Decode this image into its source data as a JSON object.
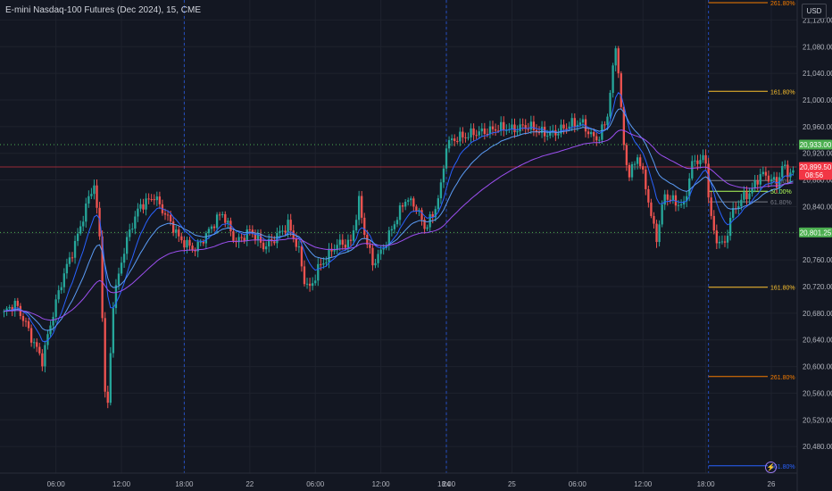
{
  "header": {
    "instrument": "E-mini Nasdaq-100 Futures (Dec 2024)",
    "interval": "15",
    "exchange": "CME",
    "currency": "USD"
  },
  "colors": {
    "background": "#131722",
    "grid": "#1e222d",
    "axis_text": "#b2b5be",
    "up_candle": "#26a69a",
    "down_candle": "#ef5350",
    "ma_fast": "#2962ff",
    "ma_mid": "#5b9cf6",
    "ma_slow": "#9c4ff0",
    "level_green": "#4caf50",
    "current_price": "#f23645"
  },
  "chart_data": {
    "type": "candlestick",
    "y_axis": {
      "ylim": [
        20440,
        21150
      ],
      "ticks": [
        20480,
        20520,
        20560,
        20600,
        20640,
        20680,
        20720,
        20760,
        20800,
        20840,
        20880,
        20920,
        20960,
        21000,
        21040,
        21080,
        21120
      ],
      "tick_labels": [
        "20,480.00",
        "20,520.00",
        "20,560.00",
        "20,600.00",
        "20,640.00",
        "20,680.00",
        "20,720.00",
        "20,760.00",
        "20,800.00",
        "20,840.00",
        "20,880.00",
        "20,920.00",
        "20,960.00",
        "21,000.00",
        "21,040.00",
        "21,080.00",
        "21,120.00"
      ]
    },
    "x_axis": {
      "bar_count": 290,
      "ticks": [
        {
          "label": "06:00",
          "bar": 19
        },
        {
          "label": "12:00",
          "bar": 43
        },
        {
          "label": "18:00",
          "bar": 66
        },
        {
          "label": "22",
          "bar": 90
        },
        {
          "label": "06:00",
          "bar": 114
        },
        {
          "label": "12:00",
          "bar": 138
        },
        {
          "label": "18:00",
          "bar": 162
        },
        {
          "label": "24",
          "bar": 162
        },
        {
          "label": "25",
          "bar": 186
        },
        {
          "label": "06:00",
          "bar": 210
        },
        {
          "label": "12:00",
          "bar": 234
        },
        {
          "label": "18:00",
          "bar": 257
        },
        {
          "label": "26",
          "bar": 281
        }
      ],
      "tick_display": [
        "06:00",
        "12:00",
        "18:00",
        "22",
        "06:00",
        "12:00",
        "18:00",
        "24",
        "25",
        "06:00",
        "12:00",
        "18:00",
        "26"
      ],
      "session_separators": [
        66,
        162,
        258
      ]
    },
    "price_path": [
      {
        "bar": 0,
        "price": 20680
      },
      {
        "bar": 4,
        "price": 20690
      },
      {
        "bar": 8,
        "price": 20665
      },
      {
        "bar": 12,
        "price": 20630
      },
      {
        "bar": 14,
        "price": 20610
      },
      {
        "bar": 17,
        "price": 20660
      },
      {
        "bar": 22,
        "price": 20740
      },
      {
        "bar": 27,
        "price": 20800
      },
      {
        "bar": 31,
        "price": 20850
      },
      {
        "bar": 33,
        "price": 20870
      },
      {
        "bar": 35,
        "price": 20790
      },
      {
        "bar": 36,
        "price": 20680
      },
      {
        "bar": 37,
        "price": 20560
      },
      {
        "bar": 38,
        "price": 20545
      },
      {
        "bar": 40,
        "price": 20700
      },
      {
        "bar": 43,
        "price": 20760
      },
      {
        "bar": 46,
        "price": 20800
      },
      {
        "bar": 50,
        "price": 20840
      },
      {
        "bar": 55,
        "price": 20860
      },
      {
        "bar": 60,
        "price": 20820
      },
      {
        "bar": 64,
        "price": 20790
      },
      {
        "bar": 70,
        "price": 20780
      },
      {
        "bar": 75,
        "price": 20800
      },
      {
        "bar": 80,
        "price": 20830
      },
      {
        "bar": 85,
        "price": 20790
      },
      {
        "bar": 90,
        "price": 20800
      },
      {
        "bar": 95,
        "price": 20780
      },
      {
        "bar": 100,
        "price": 20800
      },
      {
        "bar": 104,
        "price": 20810
      },
      {
        "bar": 108,
        "price": 20770
      },
      {
        "bar": 110,
        "price": 20730
      },
      {
        "bar": 112,
        "price": 20720
      },
      {
        "bar": 115,
        "price": 20750
      },
      {
        "bar": 118,
        "price": 20760
      },
      {
        "bar": 122,
        "price": 20780
      },
      {
        "bar": 127,
        "price": 20790
      },
      {
        "bar": 130,
        "price": 20850
      },
      {
        "bar": 132,
        "price": 20800
      },
      {
        "bar": 135,
        "price": 20750
      },
      {
        "bar": 138,
        "price": 20770
      },
      {
        "bar": 140,
        "price": 20790
      },
      {
        "bar": 143,
        "price": 20820
      },
      {
        "bar": 147,
        "price": 20850
      },
      {
        "bar": 151,
        "price": 20835
      },
      {
        "bar": 154,
        "price": 20810
      },
      {
        "bar": 157,
        "price": 20830
      },
      {
        "bar": 160,
        "price": 20870
      },
      {
        "bar": 162,
        "price": 20930
      },
      {
        "bar": 166,
        "price": 20940
      },
      {
        "bar": 172,
        "price": 20955
      },
      {
        "bar": 178,
        "price": 20950
      },
      {
        "bar": 184,
        "price": 20960
      },
      {
        "bar": 190,
        "price": 20960
      },
      {
        "bar": 196,
        "price": 20950
      },
      {
        "bar": 202,
        "price": 20955
      },
      {
        "bar": 208,
        "price": 20960
      },
      {
        "bar": 212,
        "price": 20965
      },
      {
        "bar": 215,
        "price": 20950
      },
      {
        "bar": 218,
        "price": 20945
      },
      {
        "bar": 221,
        "price": 20975
      },
      {
        "bar": 223,
        "price": 21040
      },
      {
        "bar": 224,
        "price": 21080
      },
      {
        "bar": 225,
        "price": 21040
      },
      {
        "bar": 227,
        "price": 20930
      },
      {
        "bar": 229,
        "price": 20890
      },
      {
        "bar": 232,
        "price": 20920
      },
      {
        "bar": 235,
        "price": 20870
      },
      {
        "bar": 237,
        "price": 20820
      },
      {
        "bar": 239,
        "price": 20790
      },
      {
        "bar": 242,
        "price": 20860
      },
      {
        "bar": 246,
        "price": 20850
      },
      {
        "bar": 249,
        "price": 20840
      },
      {
        "bar": 252,
        "price": 20900
      },
      {
        "bar": 255,
        "price": 20910
      },
      {
        "bar": 257,
        "price": 20910
      },
      {
        "bar": 258,
        "price": 20860
      },
      {
        "bar": 260,
        "price": 20800
      },
      {
        "bar": 262,
        "price": 20790
      },
      {
        "bar": 264,
        "price": 20780
      },
      {
        "bar": 266,
        "price": 20820
      },
      {
        "bar": 270,
        "price": 20850
      },
      {
        "bar": 274,
        "price": 20870
      },
      {
        "bar": 277,
        "price": 20890
      },
      {
        "bar": 280,
        "price": 20880
      },
      {
        "bar": 283,
        "price": 20870
      },
      {
        "bar": 285,
        "price": 20900
      },
      {
        "bar": 287,
        "price": 20895
      }
    ],
    "moving_averages": [
      {
        "color": "#2962ff",
        "period": 9
      },
      {
        "color": "#5b9cf6",
        "period": 20
      },
      {
        "color": "#9c4ff0",
        "period": 55
      }
    ],
    "horizontal_levels": [
      {
        "price": 20933.0,
        "label": "20,933.00",
        "color": "#4caf50",
        "style": "dotted",
        "full_width": true
      },
      {
        "price": 20801.25,
        "label": "20,801.25",
        "color": "#4caf50",
        "style": "dotted",
        "full_width": true
      },
      {
        "price": 20899.5,
        "label": "20,899.50",
        "color": "#f23645",
        "style": "solid",
        "full_width": true,
        "current": true,
        "countdown": "08:56"
      }
    ],
    "fibonacci_levels": [
      {
        "label": "261.80%",
        "price": 21147,
        "color": "#f57c00"
      },
      {
        "label": "161.80%",
        "price": 21013,
        "color": "#fbc02d"
      },
      {
        "label": "61.80%",
        "price": 20879,
        "color": "#787b86"
      },
      {
        "label": "50.00%",
        "price": 20863,
        "color": "#b2ff59"
      },
      {
        "label": "61.80%",
        "price": 20847,
        "color": "#787b86"
      },
      {
        "label": "161.80%",
        "price": 20719,
        "color": "#fbc02d"
      },
      {
        "label": "261.80%",
        "price": 20585,
        "color": "#f57c00"
      },
      {
        "label": "361.80%",
        "price": 20451,
        "color": "#2962ff"
      }
    ],
    "fib_start_bar": 258
  }
}
